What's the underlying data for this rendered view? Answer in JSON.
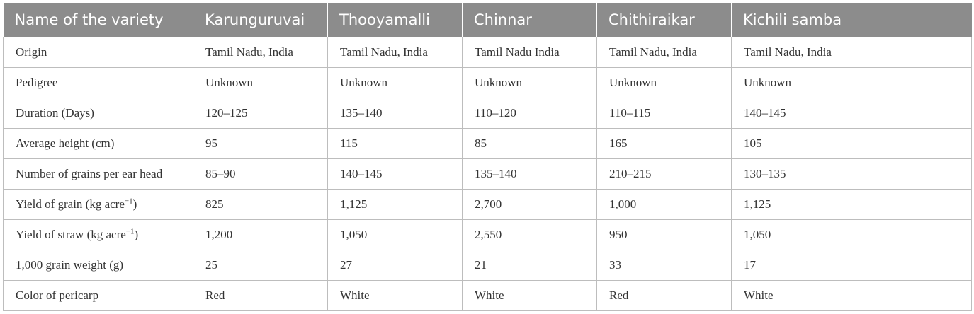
{
  "table": {
    "headers": [
      "Name of the variety",
      "Karunguruvai",
      "Thooyamalli",
      "Chinnar",
      "Chithiraikar",
      "Kichili samba"
    ],
    "rows": [
      [
        "Origin",
        "Tamil Nadu, India",
        "Tamil Nadu, India",
        "Tamil Nadu India",
        "Tamil Nadu, India",
        "Tamil Nadu, India"
      ],
      [
        "Pedigree",
        "Unknown",
        "Unknown",
        "Unknown",
        "Unknown",
        "Unknown"
      ],
      [
        "Duration (Days)",
        "120–125",
        "135–140",
        "110–120",
        "110–115",
        "140–145"
      ],
      [
        "Average height (cm)",
        "95",
        "115",
        "85",
        "165",
        "105"
      ],
      [
        "Number of grains per ear head",
        "85–90",
        "140–145",
        "135–140",
        "210–215",
        "130–135"
      ],
      [
        "Yield of grain (kg acre−1)",
        "825",
        "1,125",
        "2,700",
        "1,000",
        "1,125"
      ],
      [
        "Yield of straw (kg acre−1)",
        "1,200",
        "1,050",
        "2,550",
        "950",
        "1,050"
      ],
      [
        "1,000 grain weight (g)",
        "25",
        "27",
        "21",
        "33",
        "17"
      ],
      [
        "Color of pericarp",
        "Red",
        "White",
        "White",
        "Red",
        "White"
      ]
    ]
  }
}
